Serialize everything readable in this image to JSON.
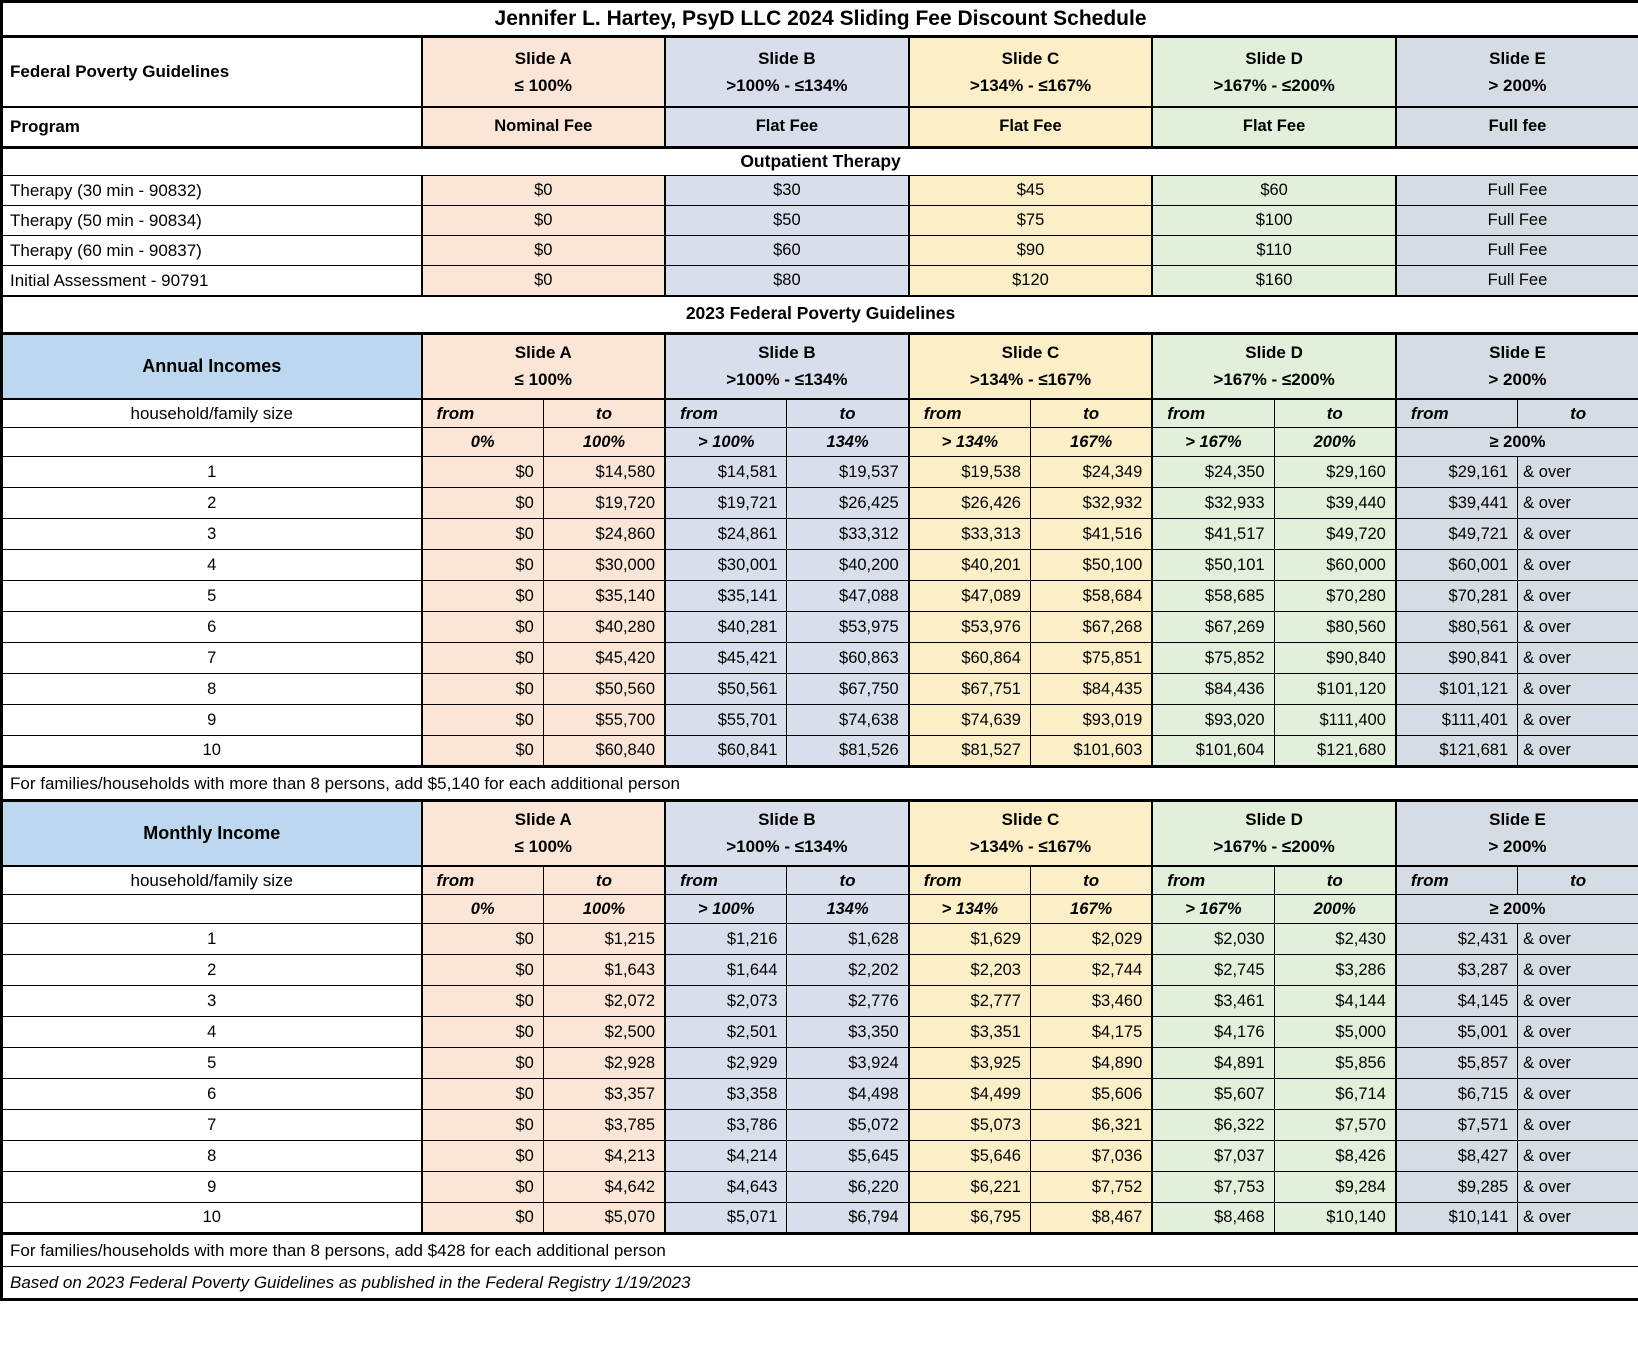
{
  "title": "Jennifer L. Hartey, PsyD LLC 2024 Sliding Fee Discount Schedule",
  "colors": {
    "slide_a": "#FBE5D6",
    "slide_b": "#D8DEEC",
    "slide_c": "#FCEFC7",
    "slide_d": "#E2EFDA",
    "slide_e": "#D6DCE4",
    "income_header_blue": "#BDD7EE"
  },
  "slides": [
    {
      "name": "Slide A",
      "range": "≤ 100%",
      "fee_type": "Nominal Fee"
    },
    {
      "name": "Slide B",
      "range": ">100% - ≤134%",
      "fee_type": "Flat Fee"
    },
    {
      "name": "Slide C",
      "range": ">134% - ≤167%",
      "fee_type": "Flat Fee"
    },
    {
      "name": "Slide D",
      "range": ">167% - ≤200%",
      "fee_type": "Flat Fee"
    },
    {
      "name": "Slide E",
      "range": "> 200%",
      "fee_type": "Full fee"
    }
  ],
  "fee_table": {
    "fpg_label": "Federal Poverty Guidelines",
    "program_label": "Program",
    "section_label": "Outpatient Therapy",
    "services": [
      {
        "label": "Therapy (30 min - 90832)",
        "fees": [
          "$0",
          "$30",
          "$45",
          "$60",
          "Full Fee"
        ]
      },
      {
        "label": "Therapy (50 min - 90834)",
        "fees": [
          "$0",
          "$50",
          "$75",
          "$100",
          "Full Fee"
        ]
      },
      {
        "label": "Therapy (60 min - 90837)",
        "fees": [
          "$0",
          "$60",
          "$90",
          "$110",
          "Full Fee"
        ]
      },
      {
        "label": "Initial Assessment - 90791",
        "fees": [
          "$0",
          "$80",
          "$120",
          "$160",
          "Full Fee"
        ]
      }
    ]
  },
  "fpg_section_label": "2023 Federal Poverty Guidelines",
  "annual": {
    "header": "Annual Incomes",
    "household_label": "household/family size",
    "from_label": "from",
    "to_label": "to",
    "percent_row": [
      "0%",
      "100%",
      "> 100%",
      "134%",
      "> 134%",
      "167%",
      "> 167%",
      "200%",
      "≥ 200%"
    ],
    "rows": [
      {
        "size": "1",
        "values": [
          "$0",
          "$14,580",
          "$14,581",
          "$19,537",
          "$19,538",
          "$24,349",
          "$24,350",
          "$29,160",
          "$29,161",
          "& over"
        ]
      },
      {
        "size": "2",
        "values": [
          "$0",
          "$19,720",
          "$19,721",
          "$26,425",
          "$26,426",
          "$32,932",
          "$32,933",
          "$39,440",
          "$39,441",
          "& over"
        ]
      },
      {
        "size": "3",
        "values": [
          "$0",
          "$24,860",
          "$24,861",
          "$33,312",
          "$33,313",
          "$41,516",
          "$41,517",
          "$49,720",
          "$49,721",
          "& over"
        ]
      },
      {
        "size": "4",
        "values": [
          "$0",
          "$30,000",
          "$30,001",
          "$40,200",
          "$40,201",
          "$50,100",
          "$50,101",
          "$60,000",
          "$60,001",
          "& over"
        ]
      },
      {
        "size": "5",
        "values": [
          "$0",
          "$35,140",
          "$35,141",
          "$47,088",
          "$47,089",
          "$58,684",
          "$58,685",
          "$70,280",
          "$70,281",
          "& over"
        ]
      },
      {
        "size": "6",
        "values": [
          "$0",
          "$40,280",
          "$40,281",
          "$53,975",
          "$53,976",
          "$67,268",
          "$67,269",
          "$80,560",
          "$80,561",
          "& over"
        ]
      },
      {
        "size": "7",
        "values": [
          "$0",
          "$45,420",
          "$45,421",
          "$60,863",
          "$60,864",
          "$75,851",
          "$75,852",
          "$90,840",
          "$90,841",
          "& over"
        ]
      },
      {
        "size": "8",
        "values": [
          "$0",
          "$50,560",
          "$50,561",
          "$67,750",
          "$67,751",
          "$84,435",
          "$84,436",
          "$101,120",
          "$101,121",
          "& over"
        ]
      },
      {
        "size": "9",
        "values": [
          "$0",
          "$55,700",
          "$55,701",
          "$74,638",
          "$74,639",
          "$93,019",
          "$93,020",
          "$111,400",
          "$111,401",
          "& over"
        ]
      },
      {
        "size": "10",
        "values": [
          "$0",
          "$60,840",
          "$60,841",
          "$81,526",
          "$81,527",
          "$101,603",
          "$101,604",
          "$121,680",
          "$121,681",
          "& over"
        ]
      }
    ],
    "note": "For families/households with more than 8 persons, add $5,140 for each additional person"
  },
  "monthly": {
    "header": "Monthly Income",
    "household_label": "household/family size",
    "from_label": "from",
    "to_label": "to",
    "percent_row": [
      "0%",
      "100%",
      "> 100%",
      "134%",
      "> 134%",
      "167%",
      "> 167%",
      "200%",
      "≥ 200%"
    ],
    "rows": [
      {
        "size": "1",
        "values": [
          "$0",
          "$1,215",
          "$1,216",
          "$1,628",
          "$1,629",
          "$2,029",
          "$2,030",
          "$2,430",
          "$2,431",
          "& over"
        ]
      },
      {
        "size": "2",
        "values": [
          "$0",
          "$1,643",
          "$1,644",
          "$2,202",
          "$2,203",
          "$2,744",
          "$2,745",
          "$3,286",
          "$3,287",
          "& over"
        ]
      },
      {
        "size": "3",
        "values": [
          "$0",
          "$2,072",
          "$2,073",
          "$2,776",
          "$2,777",
          "$3,460",
          "$3,461",
          "$4,144",
          "$4,145",
          "& over"
        ]
      },
      {
        "size": "4",
        "values": [
          "$0",
          "$2,500",
          "$2,501",
          "$3,350",
          "$3,351",
          "$4,175",
          "$4,176",
          "$5,000",
          "$5,001",
          "& over"
        ]
      },
      {
        "size": "5",
        "values": [
          "$0",
          "$2,928",
          "$2,929",
          "$3,924",
          "$3,925",
          "$4,890",
          "$4,891",
          "$5,856",
          "$5,857",
          "& over"
        ]
      },
      {
        "size": "6",
        "values": [
          "$0",
          "$3,357",
          "$3,358",
          "$4,498",
          "$4,499",
          "$5,606",
          "$5,607",
          "$6,714",
          "$6,715",
          "& over"
        ]
      },
      {
        "size": "7",
        "values": [
          "$0",
          "$3,785",
          "$3,786",
          "$5,072",
          "$5,073",
          "$6,321",
          "$6,322",
          "$7,570",
          "$7,571",
          "& over"
        ]
      },
      {
        "size": "8",
        "values": [
          "$0",
          "$4,213",
          "$4,214",
          "$5,645",
          "$5,646",
          "$7,036",
          "$7,037",
          "$8,426",
          "$8,427",
          "& over"
        ]
      },
      {
        "size": "9",
        "values": [
          "$0",
          "$4,642",
          "$4,643",
          "$6,220",
          "$6,221",
          "$7,752",
          "$7,753",
          "$9,284",
          "$9,285",
          "& over"
        ]
      },
      {
        "size": "10",
        "values": [
          "$0",
          "$5,070",
          "$5,071",
          "$6,794",
          "$6,795",
          "$8,467",
          "$8,468",
          "$10,140",
          "$10,141",
          "& over"
        ]
      }
    ],
    "note": "For families/households with more than 8 persons, add $428 for each additional person"
  },
  "footer_note": "Based on 2023 Federal Poverty Guidelines as published in the Federal Registry 1/19/2023"
}
